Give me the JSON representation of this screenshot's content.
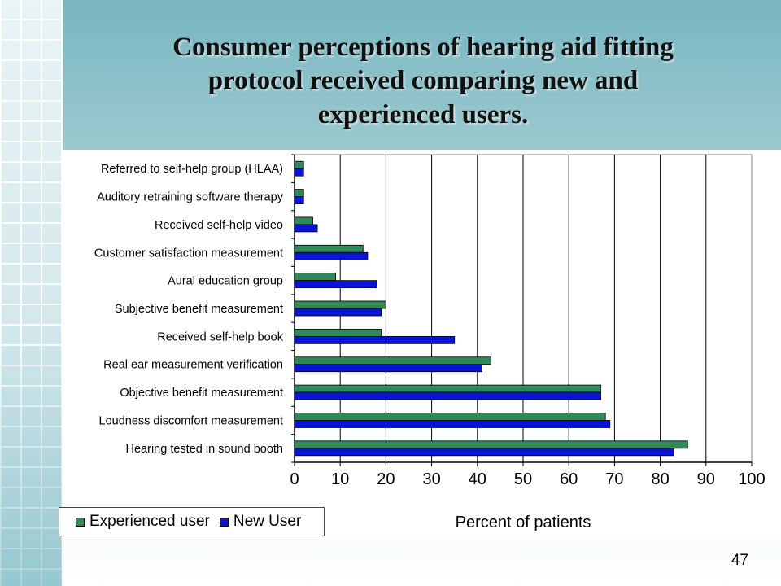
{
  "slide": {
    "title_lines": [
      "Consumer perceptions of hearing aid fitting",
      "protocol received comparing new and",
      "experienced users."
    ],
    "page_number": "47"
  },
  "colors": {
    "experienced": "#2e8b57",
    "new": "#0a14d6"
  },
  "chart_data": {
    "type": "bar",
    "orientation": "horizontal",
    "title": "",
    "xlabel": "Percent of patients",
    "ylabel": "",
    "xlim": [
      0,
      100
    ],
    "x_ticks": [
      0,
      10,
      20,
      30,
      40,
      50,
      60,
      70,
      80,
      90,
      100
    ],
    "grid": true,
    "legend_position": "bottom-left",
    "categories": [
      "Referred to self-help group (HLAA)",
      "Auditory retraining software therapy",
      "Received self-help video",
      "Customer satisfaction measurement",
      "Aural education group",
      "Subjective benefit measurement",
      "Received self-help book",
      "Real ear measurement verification",
      "Objective benefit measurement",
      "Loudness discomfort measurement",
      "Hearing tested in sound booth"
    ],
    "series": [
      {
        "name": "Experienced user",
        "values": [
          2,
          2,
          4,
          15,
          9,
          20,
          19,
          43,
          67,
          68,
          86
        ]
      },
      {
        "name": "New User",
        "values": [
          2,
          2,
          5,
          16,
          18,
          19,
          35,
          41,
          67,
          69,
          83
        ]
      }
    ]
  }
}
